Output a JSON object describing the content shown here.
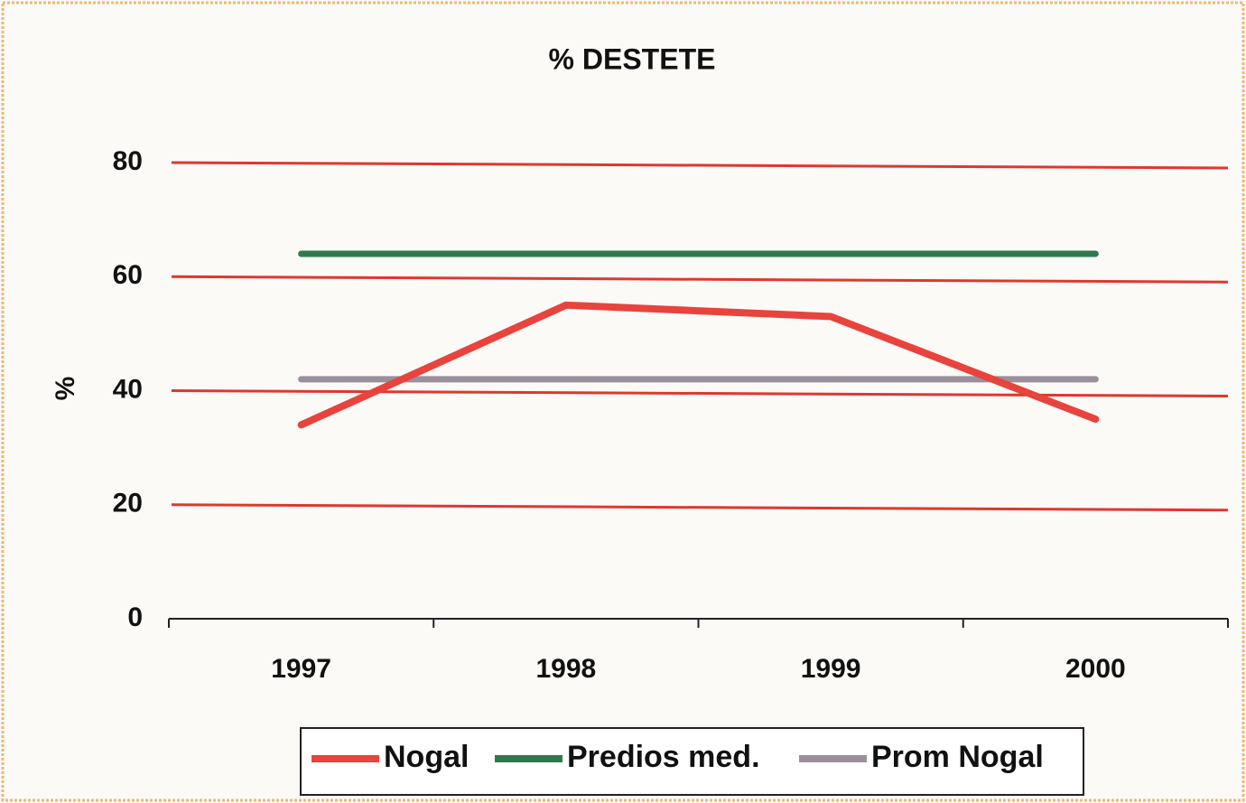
{
  "chart_data": {
    "type": "line",
    "title": "% DESTETE",
    "y_label": "%",
    "categories": [
      "1997",
      "1998",
      "1999",
      "2000"
    ],
    "series": [
      {
        "name": "Nogal",
        "color": "#e8433d",
        "values": [
          34,
          55,
          53,
          35
        ]
      },
      {
        "name": "Predios med.",
        "color": "#2f7a4c",
        "values": [
          64,
          64,
          64,
          64
        ]
      },
      {
        "name": "Prom Nogal",
        "color": "#9b8f9c",
        "values": [
          42,
          42,
          42,
          42
        ]
      }
    ],
    "ylim": [
      0,
      80
    ],
    "yticks": [
      0,
      20,
      40,
      60,
      80
    ],
    "grid": true,
    "grid_color": "#e0372e",
    "legend": "bottom"
  }
}
